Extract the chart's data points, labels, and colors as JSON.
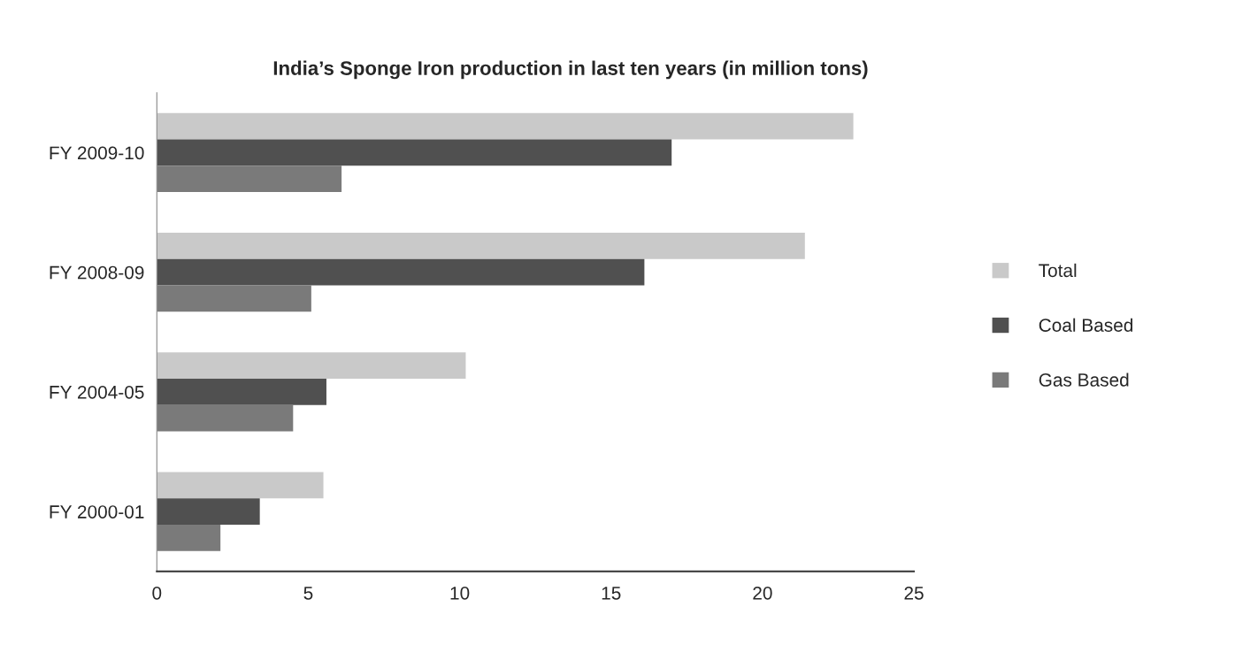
{
  "chart_data": {
    "type": "bar",
    "orientation": "horizontal",
    "title": "India’s Sponge Iron production in last ten years (in million tons)",
    "categories": [
      "FY 2009-10",
      "FY 2008-09",
      "FY 2004-05",
      "FY 2000-01"
    ],
    "series": [
      {
        "name": "Total",
        "color": "#c9c9c9",
        "values": [
          23.0,
          21.4,
          10.2,
          5.5
        ]
      },
      {
        "name": "Coal Based",
        "color": "#505050",
        "values": [
          17.0,
          16.1,
          5.6,
          3.4
        ]
      },
      {
        "name": "Gas Based",
        "color": "#7a7a7a",
        "values": [
          6.1,
          5.1,
          4.5,
          2.1
        ]
      }
    ],
    "xlim": [
      0,
      25
    ],
    "xticks": [
      0,
      5,
      10,
      15,
      20,
      25
    ],
    "legend": "right"
  }
}
